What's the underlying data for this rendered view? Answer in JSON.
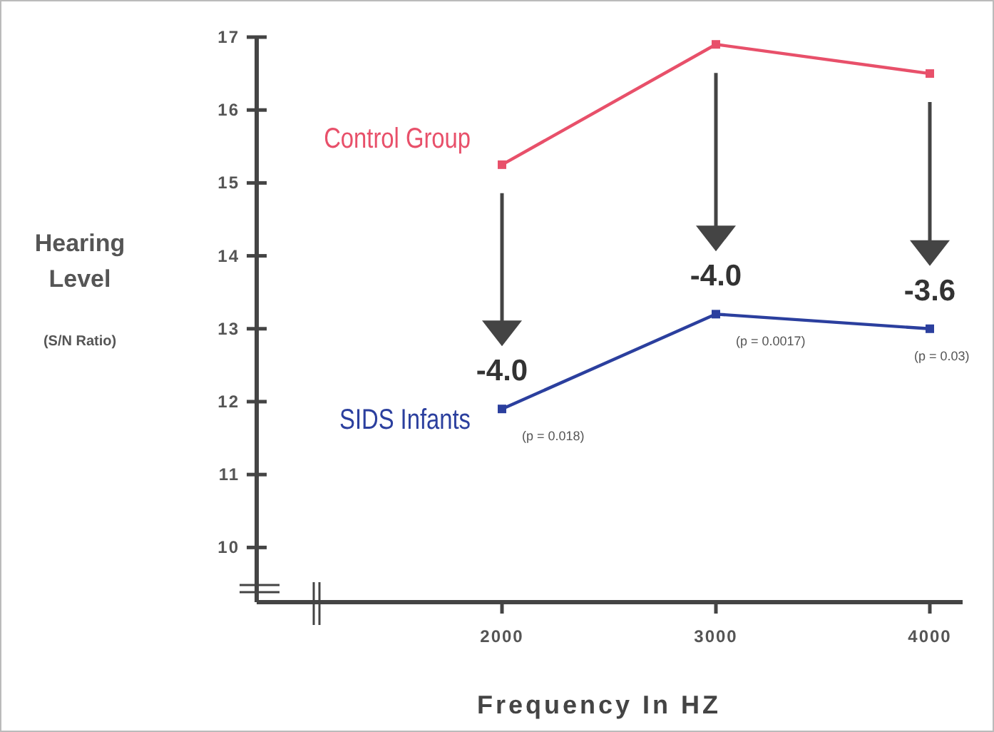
{
  "chart_data": {
    "type": "line",
    "xlabel": "Frequency In HZ",
    "ylabel": "Hearing Level (S/N Ratio)",
    "categories": [
      "2000",
      "3000",
      "4000"
    ],
    "series": [
      {
        "name": "Control Group",
        "color": "#e8506a",
        "values": [
          15.25,
          16.9,
          16.5
        ]
      },
      {
        "name": "SIDS Infants",
        "color": "#2b3f9e",
        "values": [
          11.9,
          13.2,
          13.0
        ]
      }
    ],
    "ylim": [
      9.25,
      17
    ],
    "yticks": [
      10,
      11,
      12,
      13,
      14,
      15,
      16,
      17
    ],
    "marker": "square",
    "annotations": [
      "-4.0",
      "(p = 0.018)",
      "-4.0",
      "(p = 0.0017)",
      "-3.6",
      "(p = 0.03)"
    ]
  }
}
